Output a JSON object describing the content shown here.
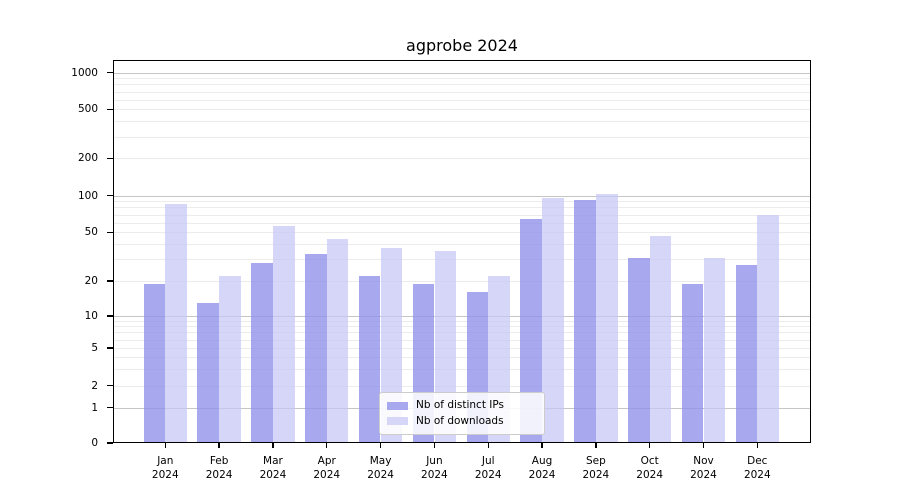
{
  "chart_data": {
    "type": "bar",
    "title": "agprobe 2024",
    "categories": [
      "Jan 2024",
      "Feb 2024",
      "Mar 2024",
      "Apr 2024",
      "May 2024",
      "Jun 2024",
      "Jul 2024",
      "Aug 2024",
      "Sep 2024",
      "Oct 2024",
      "Nov 2024",
      "Dec 2024"
    ],
    "series": [
      {
        "name": "Nb of distinct IPs",
        "color": "#a8a8ef",
        "fill": "rgba(143,143,235,0.78)",
        "values": [
          19,
          13,
          28,
          33,
          22,
          19,
          16,
          64,
          92,
          31,
          19,
          27
        ]
      },
      {
        "name": "Nb of downloads",
        "color": "#d6d6f8",
        "fill": "rgba(198,198,246,0.72)",
        "values": [
          85,
          22,
          56,
          44,
          37,
          35,
          22,
          95,
          104,
          47,
          31,
          70
        ]
      }
    ],
    "yticks": [
      0,
      1,
      2,
      5,
      10,
      20,
      50,
      100,
      200,
      500,
      1000
    ],
    "yscale": "symlog",
    "ylim": [
      0,
      1300
    ],
    "xlabel": "",
    "ylabel": "",
    "grid": true,
    "legend_position": "lower center"
  }
}
